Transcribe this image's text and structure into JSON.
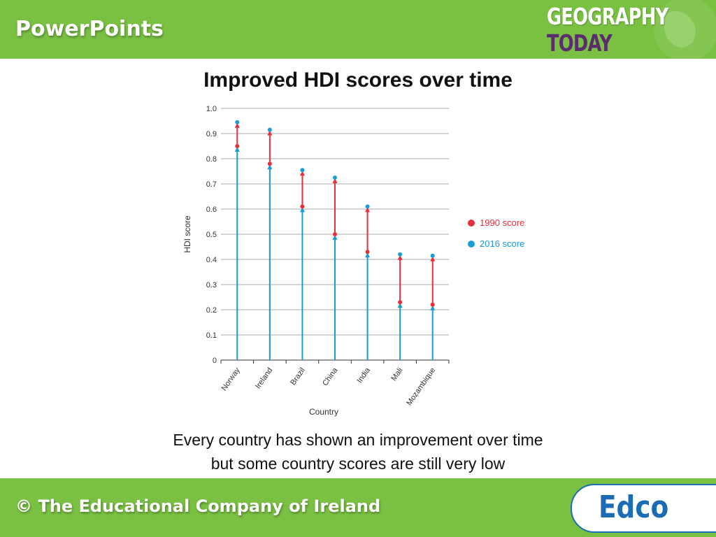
{
  "header": {
    "brand": "PowerPoints",
    "logo_line1": "GEOGRAPHY",
    "logo_line2": "TODAY"
  },
  "slide": {
    "title": "Improved HDI scores over time",
    "caption_line1": "Every country has shown an improvement over time",
    "caption_line2": "but some country scores are still very low"
  },
  "footer": {
    "copyright": "© The Educational Company of Ireland",
    "logo": "Edco"
  },
  "chart_data": {
    "type": "dot-range",
    "title": "",
    "xlabel": "Country",
    "ylabel": "HDI score",
    "ylim": [
      0,
      1.0
    ],
    "yticks": [
      "0",
      "0.1",
      "0.2",
      "0.3",
      "0.4",
      "0.5",
      "0.6",
      "0.7",
      "0.8",
      "0.9",
      "1.0"
    ],
    "grid": true,
    "legend_position": "right",
    "categories": [
      "Norway",
      "Ireland",
      "Brazil",
      "China",
      "India",
      "Mali",
      "Mozambique"
    ],
    "series": [
      {
        "name": "1990 score",
        "color": "#e8303c",
        "values": [
          0.85,
          0.78,
          0.61,
          0.5,
          0.43,
          0.23,
          0.22
        ]
      },
      {
        "name": "2016 score",
        "color": "#1a9ad6",
        "values": [
          0.945,
          0.915,
          0.755,
          0.725,
          0.61,
          0.42,
          0.415
        ]
      }
    ]
  }
}
